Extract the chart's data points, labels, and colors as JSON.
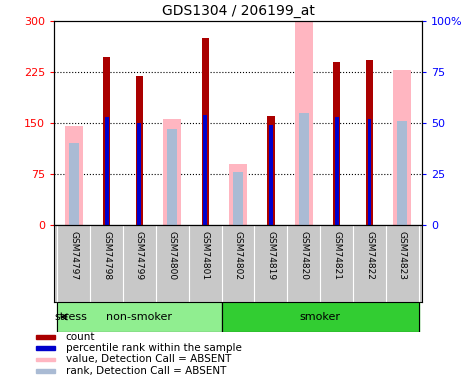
{
  "title": "GDS1304 / 206199_at",
  "samples": [
    "GSM74797",
    "GSM74798",
    "GSM74799",
    "GSM74800",
    "GSM74801",
    "GSM74802",
    "GSM74819",
    "GSM74820",
    "GSM74821",
    "GSM74822",
    "GSM74823"
  ],
  "count_values": [
    0,
    247,
    218,
    0,
    275,
    0,
    160,
    0,
    240,
    242,
    0
  ],
  "percentile_values": [
    0,
    53,
    50,
    0,
    54,
    0,
    49,
    0,
    53,
    52,
    0
  ],
  "absent_value_values": [
    145,
    0,
    0,
    155,
    0,
    90,
    0,
    300,
    0,
    0,
    228
  ],
  "absent_rank_values": [
    40,
    0,
    0,
    47,
    0,
    26,
    0,
    55,
    0,
    0,
    51
  ],
  "nonsmoker_indices": [
    0,
    1,
    2,
    3,
    4
  ],
  "smoker_indices": [
    5,
    6,
    7,
    8,
    9,
    10
  ],
  "yticks_left": [
    0,
    75,
    150,
    225,
    300
  ],
  "ytick_labels_left": [
    "0",
    "75",
    "150",
    "225",
    "300"
  ],
  "ytick_labels_right": [
    "0",
    "25",
    "50",
    "75",
    "100%"
  ],
  "gridlines": [
    75,
    150,
    225
  ],
  "count_color": "#AA0000",
  "percentile_color": "#0000CC",
  "absent_value_color": "#FFB6C1",
  "absent_rank_color": "#AABBD4",
  "tick_label_area_color": "#C8C8C8",
  "nonsmoker_color": "#90EE90",
  "smoker_color": "#32CD32",
  "legend_items": [
    "count",
    "percentile rank within the sample",
    "value, Detection Call = ABSENT",
    "rank, Detection Call = ABSENT"
  ],
  "legend_colors": [
    "#AA0000",
    "#0000CC",
    "#FFB6C1",
    "#AABBD4"
  ]
}
